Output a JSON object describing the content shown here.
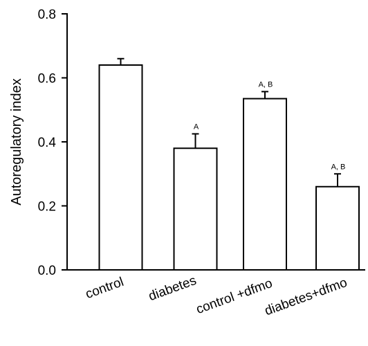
{
  "chart_data": {
    "type": "bar",
    "categories": [
      "control",
      "diabetes",
      "control +dfmo",
      "diabetes+dfmo"
    ],
    "values": [
      0.64,
      0.38,
      0.535,
      0.26
    ],
    "errors": [
      0.02,
      0.045,
      0.022,
      0.04
    ],
    "annotations": [
      "",
      "A",
      "A, B",
      "A, B"
    ],
    "title": "",
    "xlabel": "",
    "ylabel": "Autoregulatory index",
    "ylim": [
      0,
      0.8
    ],
    "yticks": [
      "0.0",
      "0.2",
      "0.4",
      "0.6",
      "0.8"
    ],
    "grid": false,
    "colors": {
      "bar_fill": "#ffffff",
      "bar_stroke": "#000000"
    }
  }
}
